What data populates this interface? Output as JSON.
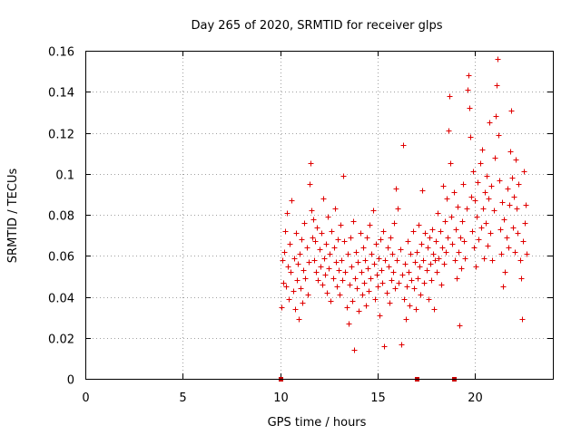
{
  "chart_data": {
    "type": "scatter",
    "title": "Day 265 of 2020, SRMTID for receiver glps",
    "xlabel": "GPS time / hours",
    "ylabel": "SRMTID / TECUs",
    "xlim": [
      0,
      24
    ],
    "ylim": [
      0,
      0.16
    ],
    "x_ticks": [
      0,
      5,
      10,
      15,
      20
    ],
    "x_tick_labels": [
      "0",
      "5",
      "10",
      "15",
      "20"
    ],
    "y_ticks": [
      0,
      0.02,
      0.04,
      0.06,
      0.08,
      0.1,
      0.12,
      0.14,
      0.16
    ],
    "y_tick_labels": [
      "0",
      "0.02",
      "0.04",
      "0.06",
      "0.08",
      "0.1",
      "0.12",
      "0.14",
      "0.16"
    ],
    "grid": true,
    "marker": "+",
    "colors": {
      "points": "#e00000",
      "zero_marks": "#c80000"
    },
    "zero_points": [
      10.0,
      17.0,
      18.9
    ],
    "series": [
      {
        "name": "SRMTID",
        "points": [
          [
            10.05,
            0.035
          ],
          [
            10.1,
            0.058
          ],
          [
            10.15,
            0.047
          ],
          [
            10.2,
            0.062
          ],
          [
            10.25,
            0.072
          ],
          [
            10.3,
            0.045
          ],
          [
            10.35,
            0.081
          ],
          [
            10.4,
            0.055
          ],
          [
            10.45,
            0.039
          ],
          [
            10.5,
            0.066
          ],
          [
            10.55,
            0.052
          ],
          [
            10.6,
            0.087
          ],
          [
            10.65,
            0.043
          ],
          [
            10.7,
            0.059
          ],
          [
            10.75,
            0.034
          ],
          [
            10.8,
            0.071
          ],
          [
            10.85,
            0.048
          ],
          [
            10.9,
            0.056
          ],
          [
            10.95,
            0.029
          ],
          [
            11.0,
            0.061
          ],
          [
            11.05,
            0.044
          ],
          [
            11.1,
            0.068
          ],
          [
            11.15,
            0.037
          ],
          [
            11.2,
            0.053
          ],
          [
            11.25,
            0.076
          ],
          [
            11.3,
            0.049
          ],
          [
            11.35,
            0.064
          ],
          [
            11.4,
            0.041
          ],
          [
            11.45,
            0.057
          ],
          [
            11.5,
            0.095
          ],
          [
            11.55,
            0.105
          ],
          [
            11.6,
            0.082
          ],
          [
            11.65,
            0.069
          ],
          [
            11.7,
            0.078
          ],
          [
            11.75,
            0.058
          ],
          [
            11.8,
            0.067
          ],
          [
            11.85,
            0.052
          ],
          [
            11.9,
            0.074
          ],
          [
            11.95,
            0.048
          ],
          [
            12.0,
            0.063
          ],
          [
            12.05,
            0.055
          ],
          [
            12.1,
            0.071
          ],
          [
            12.15,
            0.046
          ],
          [
            12.2,
            0.088
          ],
          [
            12.25,
            0.059
          ],
          [
            12.3,
            0.051
          ],
          [
            12.35,
            0.066
          ],
          [
            12.4,
            0.042
          ],
          [
            12.45,
            0.079
          ],
          [
            12.5,
            0.054
          ],
          [
            12.55,
            0.061
          ],
          [
            12.6,
            0.038
          ],
          [
            12.65,
            0.072
          ],
          [
            12.7,
            0.049
          ],
          [
            12.75,
            0.064
          ],
          [
            12.8,
            0.083
          ],
          [
            12.85,
            0.057
          ],
          [
            12.9,
            0.045
          ],
          [
            12.95,
            0.068
          ],
          [
            13.0,
            0.053
          ],
          [
            13.05,
            0.041
          ],
          [
            13.1,
            0.075
          ],
          [
            13.15,
            0.058
          ],
          [
            13.2,
            0.048
          ],
          [
            13.25,
            0.099
          ],
          [
            13.3,
            0.067
          ],
          [
            13.35,
            0.052
          ],
          [
            13.4,
            0.035
          ],
          [
            13.45,
            0.061
          ],
          [
            13.5,
            0.027
          ],
          [
            13.55,
            0.046
          ],
          [
            13.6,
            0.069
          ],
          [
            13.65,
            0.055
          ],
          [
            13.7,
            0.038
          ],
          [
            13.75,
            0.077
          ],
          [
            13.8,
            0.014
          ],
          [
            13.85,
            0.049
          ],
          [
            13.9,
            0.062
          ],
          [
            13.95,
            0.044
          ],
          [
            14.0,
            0.057
          ],
          [
            14.05,
            0.033
          ],
          [
            14.1,
            0.071
          ],
          [
            14.15,
            0.052
          ],
          [
            14.2,
            0.041
          ],
          [
            14.25,
            0.064
          ],
          [
            14.3,
            0.047
          ],
          [
            14.35,
            0.058
          ],
          [
            14.4,
            0.036
          ],
          [
            14.45,
            0.069
          ],
          [
            14.5,
            0.054
          ],
          [
            14.55,
            0.043
          ],
          [
            14.6,
            0.075
          ],
          [
            14.65,
            0.049
          ],
          [
            14.7,
            0.061
          ],
          [
            14.75,
            0.082
          ],
          [
            14.8,
            0.056
          ],
          [
            14.85,
            0.039
          ],
          [
            14.9,
            0.066
          ],
          [
            14.95,
            0.051
          ],
          [
            15.0,
            0.045
          ],
          [
            15.05,
            0.059
          ],
          [
            15.1,
            0.031
          ],
          [
            15.15,
            0.068
          ],
          [
            15.2,
            0.053
          ],
          [
            15.25,
            0.047
          ],
          [
            15.3,
            0.072
          ],
          [
            15.35,
            0.016
          ],
          [
            15.4,
            0.058
          ],
          [
            15.45,
            0.042
          ],
          [
            15.5,
            0.064
          ],
          [
            15.55,
            0.055
          ],
          [
            15.6,
            0.037
          ],
          [
            15.65,
            0.069
          ],
          [
            15.7,
            0.048
          ],
          [
            15.75,
            0.061
          ],
          [
            15.8,
            0.052
          ],
          [
            15.85,
            0.076
          ],
          [
            15.9,
            0.044
          ],
          [
            15.95,
            0.093
          ],
          [
            16.0,
            0.058
          ],
          [
            16.05,
            0.083
          ],
          [
            16.1,
            0.047
          ],
          [
            16.15,
            0.063
          ],
          [
            16.2,
            0.017
          ],
          [
            16.25,
            0.051
          ],
          [
            16.3,
            0.114
          ],
          [
            16.35,
            0.039
          ],
          [
            16.4,
            0.056
          ],
          [
            16.45,
            0.029
          ],
          [
            16.5,
            0.045
          ],
          [
            16.55,
            0.067
          ],
          [
            16.6,
            0.052
          ],
          [
            16.65,
            0.036
          ],
          [
            16.7,
            0.061
          ],
          [
            16.75,
            0.048
          ],
          [
            16.8,
            0.072
          ],
          [
            16.85,
            0.044
          ],
          [
            16.9,
            0.057
          ],
          [
            16.95,
            0.034
          ],
          [
            17.0,
            0.062
          ],
          [
            17.05,
            0.049
          ],
          [
            17.1,
            0.075
          ],
          [
            17.15,
            0.055
          ],
          [
            17.2,
            0.041
          ],
          [
            17.25,
            0.066
          ],
          [
            17.3,
            0.092
          ],
          [
            17.35,
            0.058
          ],
          [
            17.4,
            0.047
          ],
          [
            17.45,
            0.071
          ],
          [
            17.5,
            0.053
          ],
          [
            17.55,
            0.064
          ],
          [
            17.6,
            0.039
          ],
          [
            17.65,
            0.069
          ],
          [
            17.7,
            0.056
          ],
          [
            17.75,
            0.048
          ],
          [
            17.8,
            0.073
          ],
          [
            17.85,
            0.061
          ],
          [
            17.9,
            0.034
          ],
          [
            17.95,
            0.058
          ],
          [
            18.0,
            0.067
          ],
          [
            18.05,
            0.052
          ],
          [
            18.1,
            0.081
          ],
          [
            18.15,
            0.059
          ],
          [
            18.2,
            0.072
          ],
          [
            18.25,
            0.046
          ],
          [
            18.3,
            0.064
          ],
          [
            18.35,
            0.094
          ],
          [
            18.4,
            0.056
          ],
          [
            18.45,
            0.077
          ],
          [
            18.5,
            0.062
          ],
          [
            18.55,
            0.088
          ],
          [
            18.6,
            0.069
          ],
          [
            18.65,
            0.121
          ],
          [
            18.7,
            0.138
          ],
          [
            18.75,
            0.105
          ],
          [
            18.8,
            0.079
          ],
          [
            18.85,
            0.066
          ],
          [
            18.9,
            0.091
          ],
          [
            18.95,
            0.058
          ],
          [
            19.0,
            0.073
          ],
          [
            19.05,
            0.049
          ],
          [
            19.1,
            0.084
          ],
          [
            19.15,
            0.062
          ],
          [
            19.2,
            0.026
          ],
          [
            19.25,
            0.069
          ],
          [
            19.3,
            0.054
          ],
          [
            19.35,
            0.077
          ],
          [
            19.4,
            0.095
          ],
          [
            19.45,
            0.067
          ],
          [
            19.5,
            0.059
          ],
          [
            19.55,
            0.083
          ],
          [
            19.6,
            0.141
          ],
          [
            19.65,
            0.148
          ],
          [
            19.7,
            0.132
          ],
          [
            19.75,
            0.118
          ],
          [
            19.8,
            0.089
          ],
          [
            19.85,
            0.072
          ],
          [
            19.9,
            0.101
          ],
          [
            19.95,
            0.064
          ],
          [
            20.0,
            0.087
          ],
          [
            20.05,
            0.055
          ],
          [
            20.1,
            0.079
          ],
          [
            20.15,
            0.096
          ],
          [
            20.2,
            0.068
          ],
          [
            20.25,
            0.105
          ],
          [
            20.3,
            0.074
          ],
          [
            20.35,
            0.112
          ],
          [
            20.4,
            0.083
          ],
          [
            20.45,
            0.059
          ],
          [
            20.5,
            0.091
          ],
          [
            20.55,
            0.076
          ],
          [
            20.6,
            0.099
          ],
          [
            20.65,
            0.065
          ],
          [
            20.7,
            0.088
          ],
          [
            20.75,
            0.125
          ],
          [
            20.8,
            0.071
          ],
          [
            20.85,
            0.094
          ],
          [
            20.9,
            0.058
          ],
          [
            20.95,
            0.082
          ],
          [
            21.0,
            0.108
          ],
          [
            21.05,
            0.128
          ],
          [
            21.1,
            0.143
          ],
          [
            21.15,
            0.156
          ],
          [
            21.2,
            0.119
          ],
          [
            21.25,
            0.097
          ],
          [
            21.3,
            0.073
          ],
          [
            21.35,
            0.061
          ],
          [
            21.4,
            0.086
          ],
          [
            21.45,
            0.045
          ],
          [
            21.5,
            0.078
          ],
          [
            21.55,
            0.052
          ],
          [
            21.6,
            0.069
          ],
          [
            21.65,
            0.093
          ],
          [
            21.7,
            0.064
          ],
          [
            21.75,
            0.085
          ],
          [
            21.8,
            0.111
          ],
          [
            21.85,
            0.131
          ],
          [
            21.9,
            0.098
          ],
          [
            21.95,
            0.074
          ],
          [
            22.0,
            0.089
          ],
          [
            22.05,
            0.062
          ],
          [
            22.1,
            0.107
          ],
          [
            22.15,
            0.083
          ],
          [
            22.2,
            0.071
          ],
          [
            22.25,
            0.095
          ],
          [
            22.3,
            0.058
          ],
          [
            22.35,
            0.049
          ],
          [
            22.4,
            0.029
          ],
          [
            22.45,
            0.067
          ],
          [
            22.5,
            0.101
          ],
          [
            22.55,
            0.076
          ],
          [
            22.6,
            0.085
          ],
          [
            22.65,
            0.061
          ]
        ]
      }
    ]
  }
}
